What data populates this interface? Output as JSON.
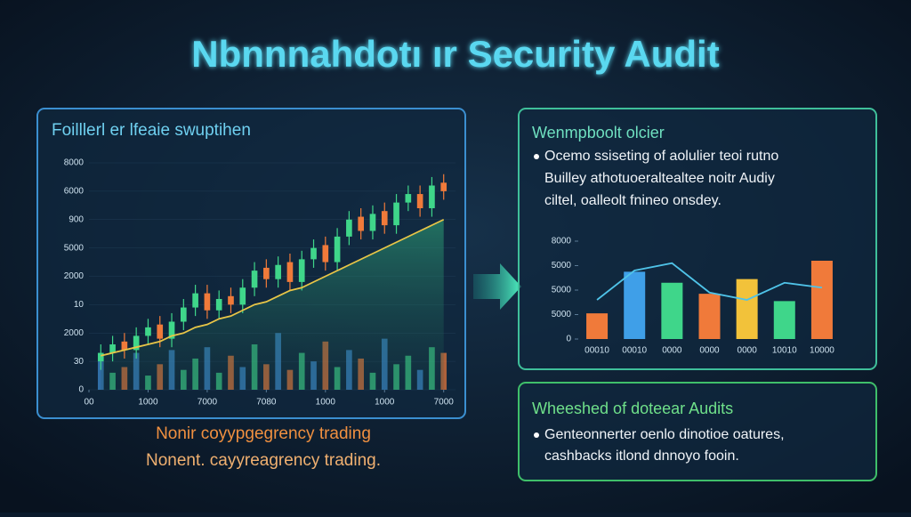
{
  "header": {
    "title": "Nbnnnahdotı ır Security Audit"
  },
  "left_panel": {
    "title": "Foilllerl er lfeaie swuptihen",
    "captions": [
      "Nonir coyypgegrency trading",
      "Nonent. cayyreagrency trading."
    ]
  },
  "right_top_panel": {
    "title": "Wenmpboolt olcier",
    "lines": [
      "Ocemo ssiseting of aolulier teoi rutno",
      "Builley athotuoeraltealtee noitr Audiy",
      "ciltel, oalleolt fnineo onsdey."
    ]
  },
  "right_bottom_panel": {
    "title": "Wheeshed of doteear Audits",
    "lines": [
      "Genteonnerter oenlo dinotioe oatures,",
      "cashbacks itlond dnnoyo fooin."
    ]
  },
  "chart_data": [
    {
      "type": "candlestick",
      "x": [
        1,
        2,
        3,
        4,
        5,
        6,
        7,
        8,
        9,
        10,
        11,
        12,
        13,
        14,
        15,
        16,
        17,
        18,
        19,
        20,
        21,
        22,
        23,
        24,
        25,
        26,
        27,
        28,
        29,
        30
      ],
      "open": [
        1.0,
        1.3,
        1.7,
        1.4,
        1.9,
        2.3,
        1.8,
        2.4,
        2.9,
        3.4,
        2.8,
        3.3,
        3.0,
        3.6,
        4.3,
        3.9,
        4.5,
        3.8,
        4.6,
        5.1,
        4.5,
        5.4,
        6.1,
        5.6,
        6.3,
        5.8,
        6.6,
        6.9,
        6.4,
        7.3
      ],
      "high": [
        1.6,
        1.9,
        2.0,
        2.2,
        2.5,
        2.6,
        2.7,
        3.2,
        3.7,
        3.7,
        3.5,
        3.6,
        3.9,
        4.5,
        4.6,
        4.7,
        4.8,
        4.9,
        5.3,
        5.4,
        5.7,
        6.3,
        6.4,
        6.5,
        6.6,
        6.9,
        7.2,
        7.2,
        7.5,
        7.6
      ],
      "low": [
        0.7,
        1.0,
        1.1,
        1.1,
        1.6,
        1.5,
        1.5,
        2.1,
        2.6,
        2.5,
        2.5,
        2.7,
        2.7,
        3.3,
        3.6,
        3.6,
        3.5,
        3.5,
        4.3,
        4.2,
        4.2,
        5.1,
        5.3,
        5.3,
        5.5,
        5.5,
        6.3,
        6.1,
        6.1,
        6.7
      ],
      "close": [
        1.3,
        1.6,
        1.4,
        1.9,
        2.2,
        1.8,
        2.4,
        2.9,
        3.4,
        2.8,
        3.2,
        3.0,
        3.6,
        4.2,
        3.9,
        4.4,
        3.8,
        4.6,
        5.0,
        4.5,
        5.4,
        6.0,
        5.6,
        6.2,
        5.8,
        6.6,
        6.9,
        6.4,
        7.2,
        7.0
      ],
      "volume": [
        1.0,
        0.6,
        0.8,
        1.3,
        0.5,
        0.9,
        1.4,
        0.7,
        1.1,
        1.5,
        0.6,
        1.2,
        0.8,
        1.6,
        0.9,
        2.0,
        0.7,
        1.3,
        1.0,
        1.7,
        0.8,
        1.4,
        1.1,
        0.6,
        1.8,
        0.9,
        1.2,
        0.7,
        1.5,
        1.3
      ],
      "ma": [
        1.2,
        1.3,
        1.4,
        1.5,
        1.6,
        1.7,
        1.9,
        2.0,
        2.2,
        2.3,
        2.5,
        2.6,
        2.8,
        3.0,
        3.1,
        3.3,
        3.5,
        3.6,
        3.8,
        4.0,
        4.2,
        4.4,
        4.6,
        4.8,
        5.0,
        5.2,
        5.4,
        5.6,
        5.8,
        6.0
      ],
      "up_color": "#3fd68a",
      "down_color": "#f07a3a",
      "ma_color": "#e8c547",
      "volume_color": "#3f8fd6",
      "xlim": [
        0,
        31
      ],
      "ylim": [
        0,
        8
      ],
      "xticks": [
        {
          "value": 0,
          "label": "00"
        },
        {
          "value": 5,
          "label": "1000"
        },
        {
          "value": 10,
          "label": "7000"
        },
        {
          "value": 15,
          "label": "7080"
        },
        {
          "value": 20,
          "label": "1000"
        },
        {
          "value": 25,
          "label": "1000"
        },
        {
          "value": 30,
          "label": "7000"
        }
      ],
      "yticks": [
        {
          "value": 0,
          "label": "0"
        },
        {
          "value": 1,
          "label": "30"
        },
        {
          "value": 2,
          "label": "2000"
        },
        {
          "value": 3,
          "label": "10"
        },
        {
          "value": 4,
          "label": "2000"
        },
        {
          "value": 5,
          "label": "5000"
        },
        {
          "value": 6,
          "label": "900"
        },
        {
          "value": 7,
          "label": "6000"
        },
        {
          "value": 8,
          "label": "8000"
        }
      ]
    },
    {
      "type": "bar",
      "categories": [
        "00010",
        "00010",
        "0000",
        "0000",
        "0000",
        "10010",
        "10000"
      ],
      "series": [
        {
          "type": "bar",
          "colors": [
            "#f07a3a",
            "#3f9fe8",
            "#3fd68a",
            "#f07a3a",
            "#f2c23a",
            "#3fd68a",
            "#f07a3a"
          ],
          "values": [
            1.05,
            2.75,
            2.3,
            1.85,
            2.45,
            1.55,
            3.2
          ]
        },
        {
          "type": "line",
          "color": "#4fc3e8",
          "values": [
            1.6,
            2.8,
            3.1,
            1.9,
            1.6,
            2.3,
            2.1
          ]
        }
      ],
      "ylim": [
        0,
        4
      ],
      "yticks": [
        {
          "value": 0,
          "label": "0"
        },
        {
          "value": 1,
          "label": "5000"
        },
        {
          "value": 2,
          "label": "5000"
        },
        {
          "value": 3,
          "label": "5000"
        },
        {
          "value": 4,
          "label": "8000"
        }
      ]
    }
  ]
}
